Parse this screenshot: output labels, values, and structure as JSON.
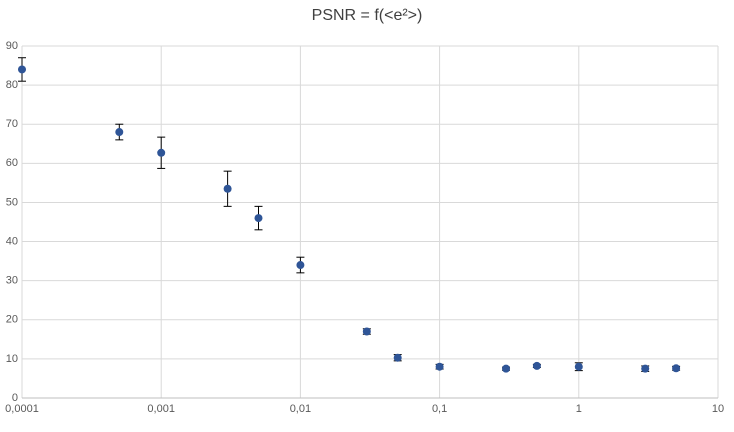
{
  "chart_data": {
    "type": "scatter",
    "title": "PSNR = f(<e²>)",
    "x": [
      0.0001,
      0.0005,
      0.001,
      0.003,
      0.005,
      0.01,
      0.03,
      0.05,
      0.1,
      0.3,
      0.5,
      1,
      3,
      5
    ],
    "values": [
      84,
      68,
      62.7,
      53.5,
      46,
      34,
      17,
      10.3,
      8,
      7.5,
      8.2,
      8,
      7.5,
      7.6
    ],
    "errors": [
      3,
      2,
      4,
      4.5,
      3,
      2,
      0.7,
      0.8,
      0.6,
      0.4,
      0.4,
      1,
      0.7,
      0.5
    ],
    "color": "#2f5597",
    "xscale": "log",
    "xlim": [
      0.0001,
      10
    ],
    "xticks": [
      {
        "value": 0.0001,
        "label": "0,0001"
      },
      {
        "value": 0.001,
        "label": "0,001"
      },
      {
        "value": 0.01,
        "label": "0,01"
      },
      {
        "value": 0.1,
        "label": "0,1"
      },
      1,
      10
    ],
    "ylim": [
      0,
      90
    ],
    "yticks": [
      0,
      10,
      20,
      30,
      40,
      50,
      60,
      70,
      80,
      90
    ],
    "grid": true
  }
}
